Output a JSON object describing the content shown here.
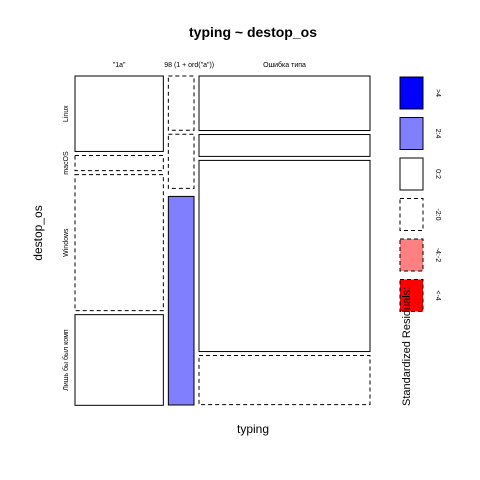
{
  "chart_data": {
    "type": "mosaic",
    "title": "typing ~ destop_os",
    "xlabel": "typing",
    "ylabel": "destop_os",
    "columns": [
      "\"1a\"",
      "98 (1 + ord(\"a\"))",
      "Ошибка типа"
    ],
    "rows": [
      "Linux",
      "macOS",
      "Windows",
      "Лишь бы был комп"
    ],
    "cells": [
      {
        "column": "\"1a\"",
        "row": "Linux",
        "proportion": 0.238,
        "residual_band": "0:2"
      },
      {
        "column": "\"1a\"",
        "row": "macOS",
        "proportion": 0.048,
        "residual_band": "-2:0"
      },
      {
        "column": "\"1a\"",
        "row": "Windows",
        "proportion": 0.429,
        "residual_band": "-2:0"
      },
      {
        "column": "\"1a\"",
        "row": "Лишь бы был комп",
        "proportion": 0.286,
        "residual_band": "0:2"
      },
      {
        "column": "98 (1 + ord(\"a\"))",
        "row": "Linux",
        "proportion": 0.171,
        "residual_band": "-2:0"
      },
      {
        "column": "98 (1 + ord(\"a\"))",
        "row": "macOS",
        "proportion": 0.171,
        "residual_band": "-2:0"
      },
      {
        "column": "98 (1 + ord(\"a\"))",
        "row": "Windows",
        "proportion": 0.0,
        "residual_band": "-2:0"
      },
      {
        "column": "98 (1 + ord(\"a\"))",
        "row": "Лишь бы был комп",
        "proportion": 0.658,
        "residual_band": "2:4"
      },
      {
        "column": "Ошибка типа",
        "row": "Linux",
        "proportion": 0.172,
        "residual_band": "0:2"
      },
      {
        "column": "Ошибка типа",
        "row": "macOS",
        "proportion": 0.069,
        "residual_band": "0:2"
      },
      {
        "column": "Ошибка типа",
        "row": "Windows",
        "proportion": 0.603,
        "residual_band": "0:2"
      },
      {
        "column": "Ошибка типа",
        "row": "Лишь бы был комп",
        "proportion": 0.155,
        "residual_band": "-2:0"
      }
    ],
    "column_proportions": [
      0.31,
      0.09,
      0.6
    ],
    "legend": {
      "title": "Standardized Residuals:",
      "placement": "right",
      "entries": [
        {
          "label": ">4",
          "color": "#0000ff",
          "dashed": false
        },
        {
          "label": "2:4",
          "color": "#8080ff",
          "dashed": false
        },
        {
          "label": "0:2",
          "color": "#ffffff",
          "dashed": false
        },
        {
          "label": "-2:0",
          "color": "#ffffff",
          "dashed": true
        },
        {
          "label": "-4:-2",
          "color": "#ff8080",
          "dashed": true
        },
        {
          "label": "<-4",
          "color": "#ff0000",
          "dashed": true
        }
      ]
    }
  }
}
